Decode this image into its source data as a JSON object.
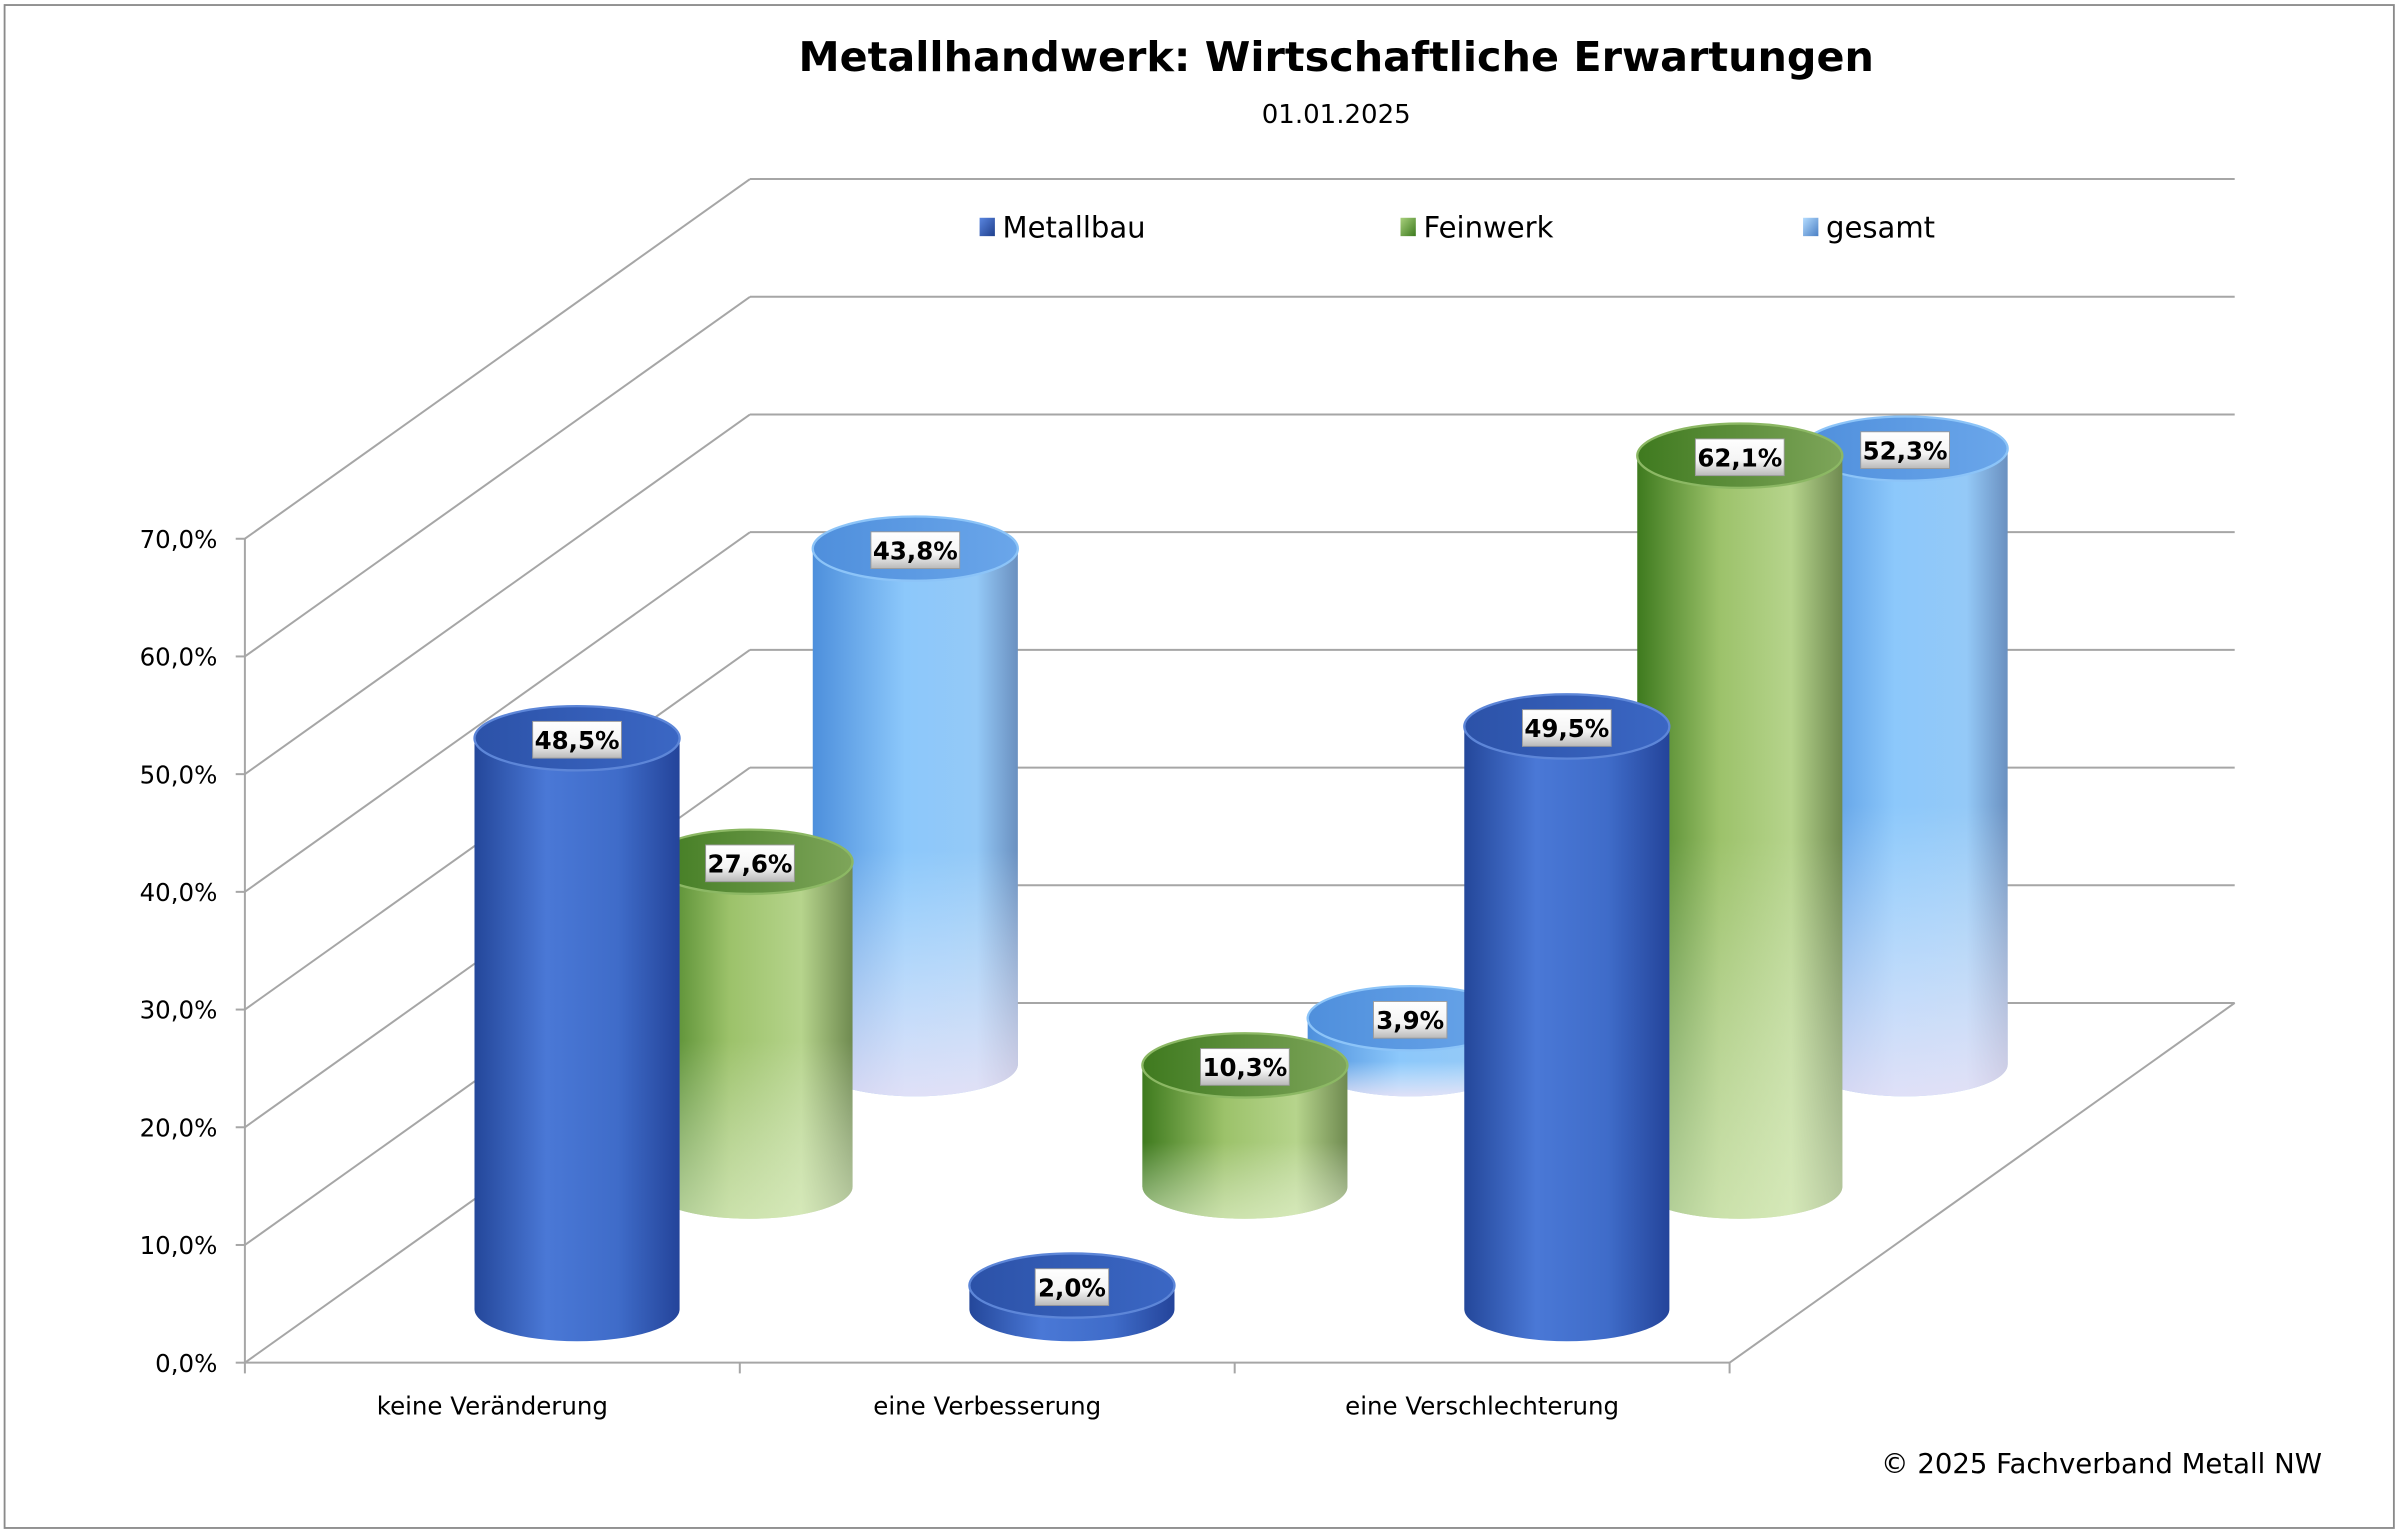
{
  "chart_data": {
    "type": "bar",
    "style": "3d-cylinder",
    "title": "Metallhandwerk: Wirtschaftliche Erwartungen",
    "subtitle": "01.01.2025",
    "categories": [
      "keine Veränderung",
      "eine Verbesserung",
      "eine Verschlechterung"
    ],
    "series": [
      {
        "name": "Metallbau",
        "values": [
          48.5,
          2.0,
          49.5
        ],
        "labels": [
          "48,5%",
          "2,0%",
          "49,5%"
        ],
        "color": "#3a66c4"
      },
      {
        "name": "Feinwerk",
        "values": [
          27.6,
          10.3,
          62.1
        ],
        "labels": [
          "27,6%",
          "10,3%",
          "62,1%"
        ],
        "color": "#5f9a34"
      },
      {
        "name": "gesamt",
        "values": [
          43.8,
          3.9,
          52.3
        ],
        "labels": [
          "43,8%",
          "3,9%",
          "52,3%"
        ],
        "color": "#6fb4f4"
      }
    ],
    "y_ticks": [
      "0,0%",
      "10,0%",
      "20,0%",
      "30,0%",
      "40,0%",
      "50,0%",
      "60,0%",
      "70,0%"
    ],
    "ylim": [
      0,
      70
    ],
    "xlabel": "",
    "ylabel": "",
    "grid": true,
    "legend_position": "top"
  },
  "footer": {
    "copyright": "© 2025 Fachverband Metall NW"
  }
}
